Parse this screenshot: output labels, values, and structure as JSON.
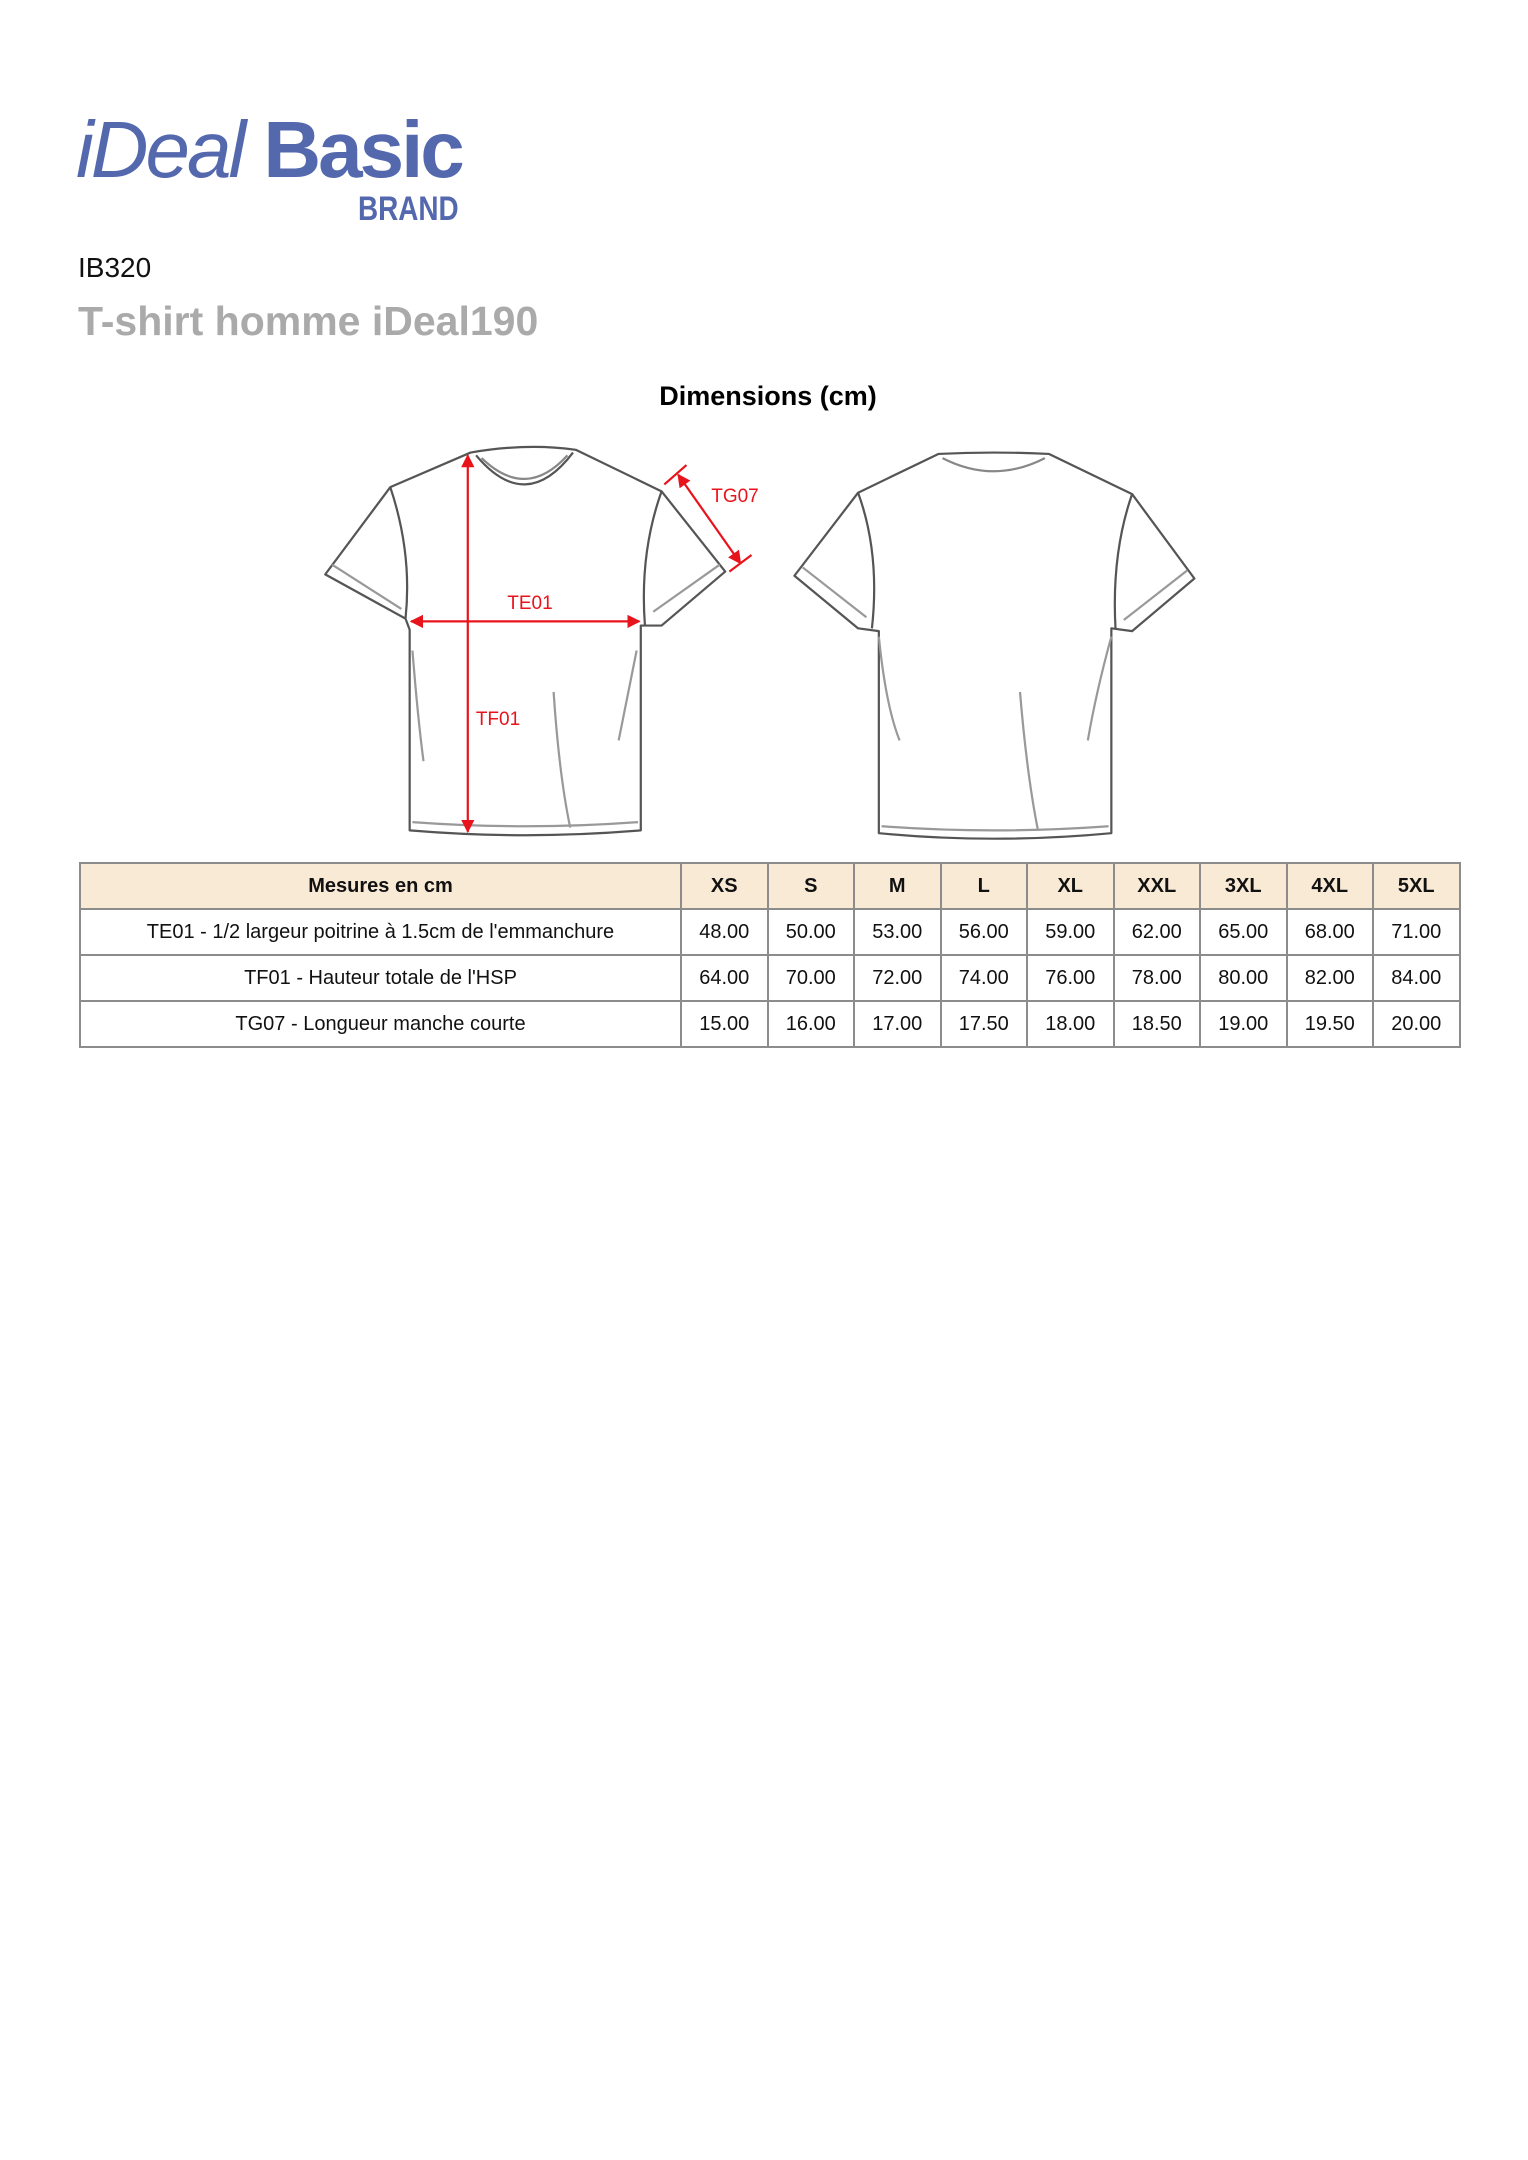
{
  "logo": {
    "ideal": "iDeal",
    "basic": "Basic",
    "brand": "BRAND",
    "color": "#5468ae"
  },
  "product": {
    "reference": "IB320",
    "name": "T-shirt homme iDeal190"
  },
  "diagram": {
    "title": "Dimensions (cm)",
    "labels": {
      "te01": "TE01",
      "tf01": "TF01",
      "tg07": "TG07"
    },
    "arrow_color": "#e8141c"
  },
  "table": {
    "header": "Mesures en cm",
    "sizes": [
      "XS",
      "S",
      "M",
      "L",
      "XL",
      "XXL",
      "3XL",
      "4XL",
      "5XL"
    ],
    "rows": [
      {
        "label": "TE01 - 1/2 largeur poitrine à 1.5cm de l'emmanchure",
        "values": [
          "48.00",
          "50.00",
          "53.00",
          "56.00",
          "59.00",
          "62.00",
          "65.00",
          "68.00",
          "71.00"
        ]
      },
      {
        "label": "TF01 - Hauteur totale de l'HSP",
        "values": [
          "64.00",
          "70.00",
          "72.00",
          "74.00",
          "76.00",
          "78.00",
          "80.00",
          "82.00",
          "84.00"
        ]
      },
      {
        "label": "TG07 - Longueur manche courte",
        "values": [
          "15.00",
          "16.00",
          "17.00",
          "17.50",
          "18.00",
          "18.50",
          "19.00",
          "19.50",
          "20.00"
        ]
      }
    ],
    "header_bg": "#f9ead6"
  }
}
